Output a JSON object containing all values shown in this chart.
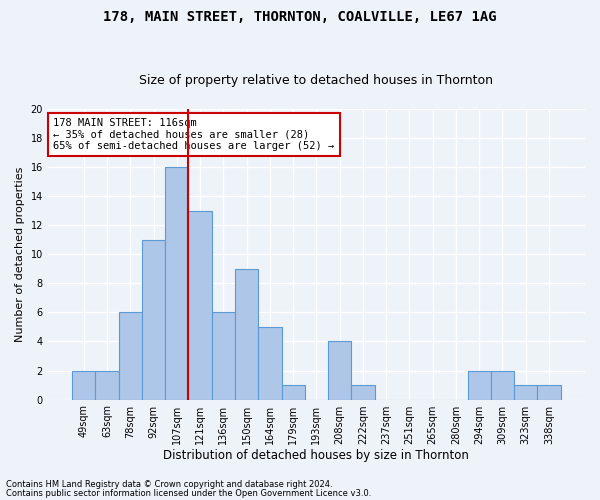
{
  "title1": "178, MAIN STREET, THORNTON, COALVILLE, LE67 1AG",
  "title2": "Size of property relative to detached houses in Thornton",
  "xlabel": "Distribution of detached houses by size in Thornton",
  "ylabel": "Number of detached properties",
  "categories": [
    "49sqm",
    "63sqm",
    "78sqm",
    "92sqm",
    "107sqm",
    "121sqm",
    "136sqm",
    "150sqm",
    "164sqm",
    "179sqm",
    "193sqm",
    "208sqm",
    "222sqm",
    "237sqm",
    "251sqm",
    "265sqm",
    "280sqm",
    "294sqm",
    "309sqm",
    "323sqm",
    "338sqm"
  ],
  "values": [
    2,
    2,
    6,
    11,
    16,
    13,
    6,
    9,
    5,
    1,
    0,
    4,
    1,
    0,
    0,
    0,
    0,
    2,
    2,
    1,
    1
  ],
  "bar_color": "#aec6e8",
  "bar_edge_color": "#5b9bd5",
  "vline_x_idx": 4,
  "vline_color": "#cc0000",
  "annotation_title": "178 MAIN STREET: 116sqm",
  "annotation_line1": "← 35% of detached houses are smaller (28)",
  "annotation_line2": "65% of semi-detached houses are larger (52) →",
  "annotation_box_color": "#ffffff",
  "annotation_box_edge_color": "#cc0000",
  "ylim": [
    0,
    20
  ],
  "yticks": [
    0,
    2,
    4,
    6,
    8,
    10,
    12,
    14,
    16,
    18,
    20
  ],
  "footer1": "Contains HM Land Registry data © Crown copyright and database right 2024.",
  "footer2": "Contains public sector information licensed under the Open Government Licence v3.0.",
  "bg_color": "#eef2f9",
  "plot_bg_color": "#eef2f9",
  "grid_color": "#ffffff",
  "title_fontsize": 10,
  "subtitle_fontsize": 9,
  "tick_fontsize": 7,
  "ylabel_fontsize": 8,
  "xlabel_fontsize": 8.5,
  "footer_fontsize": 6,
  "ann_fontsize": 7.5
}
